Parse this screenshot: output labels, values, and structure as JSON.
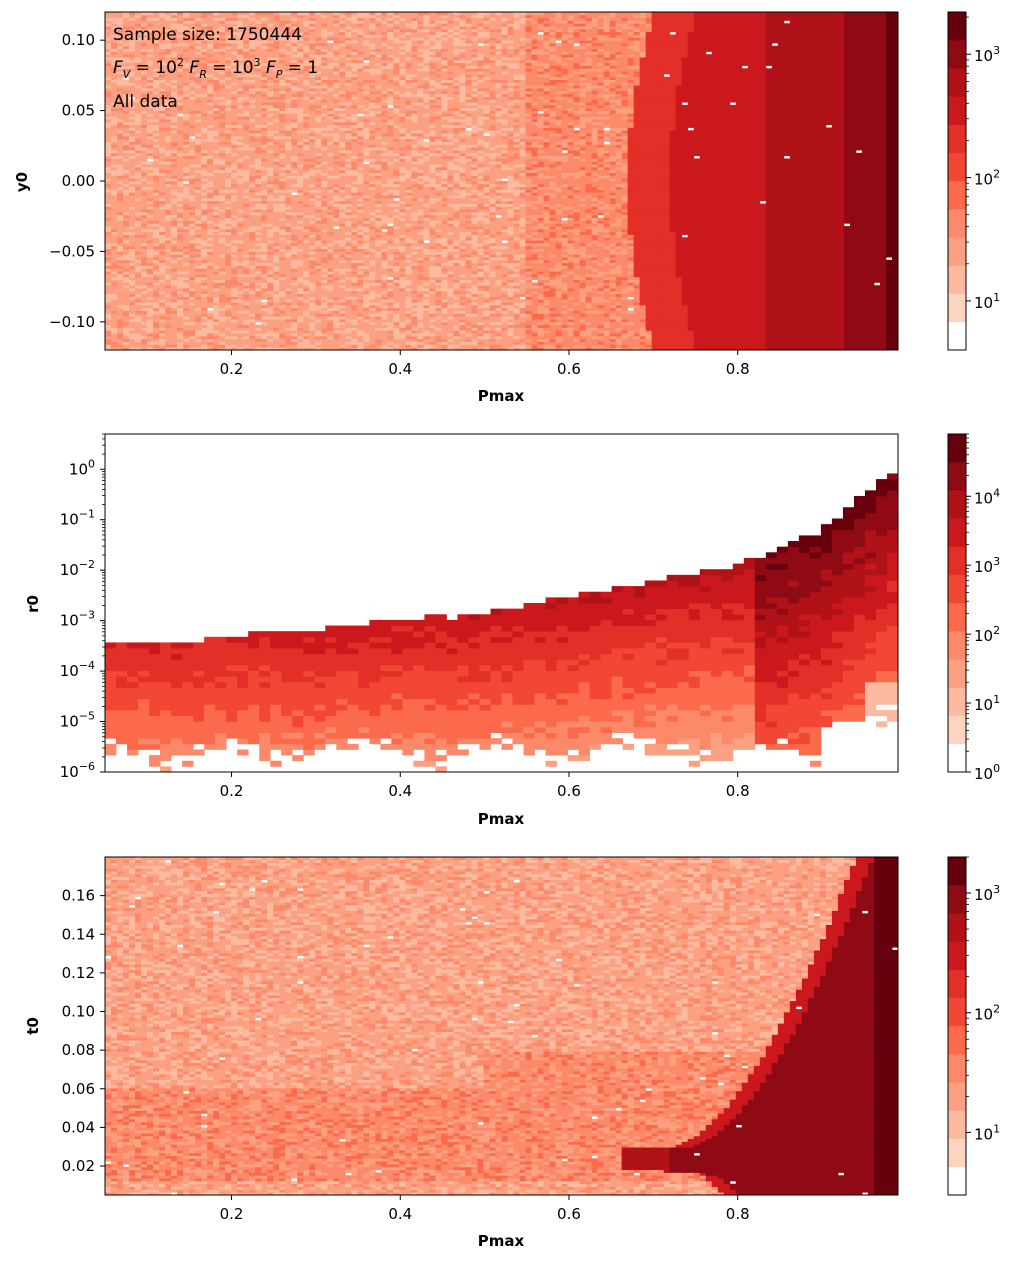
{
  "colors": {
    "levels": [
      "#ffffff",
      "#fdd4c2",
      "#fcbba1",
      "#fca082",
      "#fc8a6a",
      "#fb6a4a",
      "#f24734",
      "#e32f27",
      "#cb181d",
      "#b11218",
      "#8f0a15",
      "#67000d"
    ]
  },
  "annotations": {
    "sample_size": "Sample size: 1750444",
    "factors": "F_V = 10^2   F_R = 10^3   F_P = 1",
    "subset": "All data"
  },
  "chart_data": [
    {
      "type": "heatmap",
      "title": "",
      "xlabel": "Pmax",
      "ylabel": "y0",
      "xlim": [
        0.05,
        0.99
      ],
      "ylim": [
        -0.12,
        0.12
      ],
      "yscale": "linear",
      "xticks": [
        "0.2",
        "0.4",
        "0.6",
        "0.8"
      ],
      "yticks": [
        "0.10",
        "0.05",
        "0.00",
        "−0.05",
        "−0.10"
      ],
      "colorbar": {
        "scale": "log",
        "range": [
          4,
          2200
        ],
        "ticks": [
          "10^3",
          "10^2",
          "10^1"
        ]
      },
      "description_values": {
        "low_Pmax_counts": 20,
        "high_Pmax_counts": 2000
      }
    },
    {
      "type": "heatmap",
      "title": "",
      "xlabel": "Pmax",
      "ylabel": "r0",
      "xlim": [
        0.05,
        0.99
      ],
      "ylim": [
        1e-06,
        5
      ],
      "yscale": "log",
      "xticks": [
        "0.2",
        "0.4",
        "0.6",
        "0.8"
      ],
      "yticks": [
        "10^0",
        "10^-1",
        "10^-2",
        "10^-3",
        "10^-4",
        "10^-5",
        "10^-6"
      ],
      "colorbar": {
        "scale": "log",
        "range": [
          1,
          80000
        ],
        "ticks": [
          "10^4",
          "10^3",
          "10^2",
          "10^1",
          "10^0"
        ]
      },
      "upper_edge": {
        "x": [
          0.05,
          0.2,
          0.4,
          0.6,
          0.7,
          0.8,
          0.9,
          0.95,
          0.99
        ],
        "r0": [
          0.00035,
          0.0005,
          0.0008,
          0.002,
          0.004,
          0.01,
          0.05,
          0.2,
          3
        ]
      }
    },
    {
      "type": "heatmap",
      "title": "",
      "xlabel": "Pmax",
      "ylabel": "t0",
      "xlim": [
        0.05,
        0.99
      ],
      "ylim": [
        0.005,
        0.18
      ],
      "yscale": "linear",
      "xticks": [
        "0.2",
        "0.4",
        "0.6",
        "0.8"
      ],
      "yticks": [
        "0.16",
        "0.14",
        "0.12",
        "0.10",
        "0.08",
        "0.06",
        "0.04",
        "0.02"
      ],
      "colorbar": {
        "scale": "log",
        "range": [
          3,
          2000
        ],
        "ticks": [
          "10^3",
          "10^2",
          "10^1"
        ]
      }
    }
  ]
}
